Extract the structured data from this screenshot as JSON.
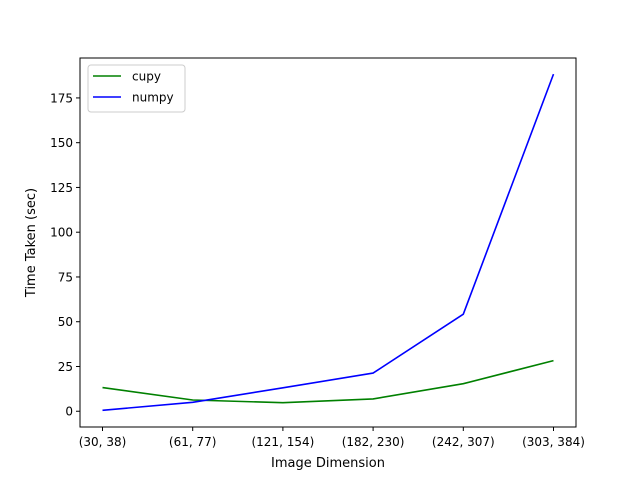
{
  "chart_data": {
    "type": "line",
    "title": "",
    "xlabel": "Image Dimension",
    "ylabel": "Time Taken (sec)",
    "categories": [
      "(30, 38)",
      "(61, 77)",
      "(121, 154)",
      "(182, 230)",
      "(242, 307)",
      "(303, 384)"
    ],
    "ylim": [
      -8.8,
      197.3
    ],
    "yticks": [
      0,
      25,
      50,
      75,
      100,
      125,
      150,
      175
    ],
    "grid": false,
    "legend_position": "top-left",
    "series": [
      {
        "name": "cupy",
        "color": "#008000",
        "values": [
          13.2,
          6.3,
          4.8,
          6.9,
          15.4,
          28.3
        ]
      },
      {
        "name": "numpy",
        "color": "#0000ff",
        "values": [
          0.5,
          5.0,
          13.1,
          21.3,
          54.2,
          188.3
        ]
      }
    ]
  }
}
